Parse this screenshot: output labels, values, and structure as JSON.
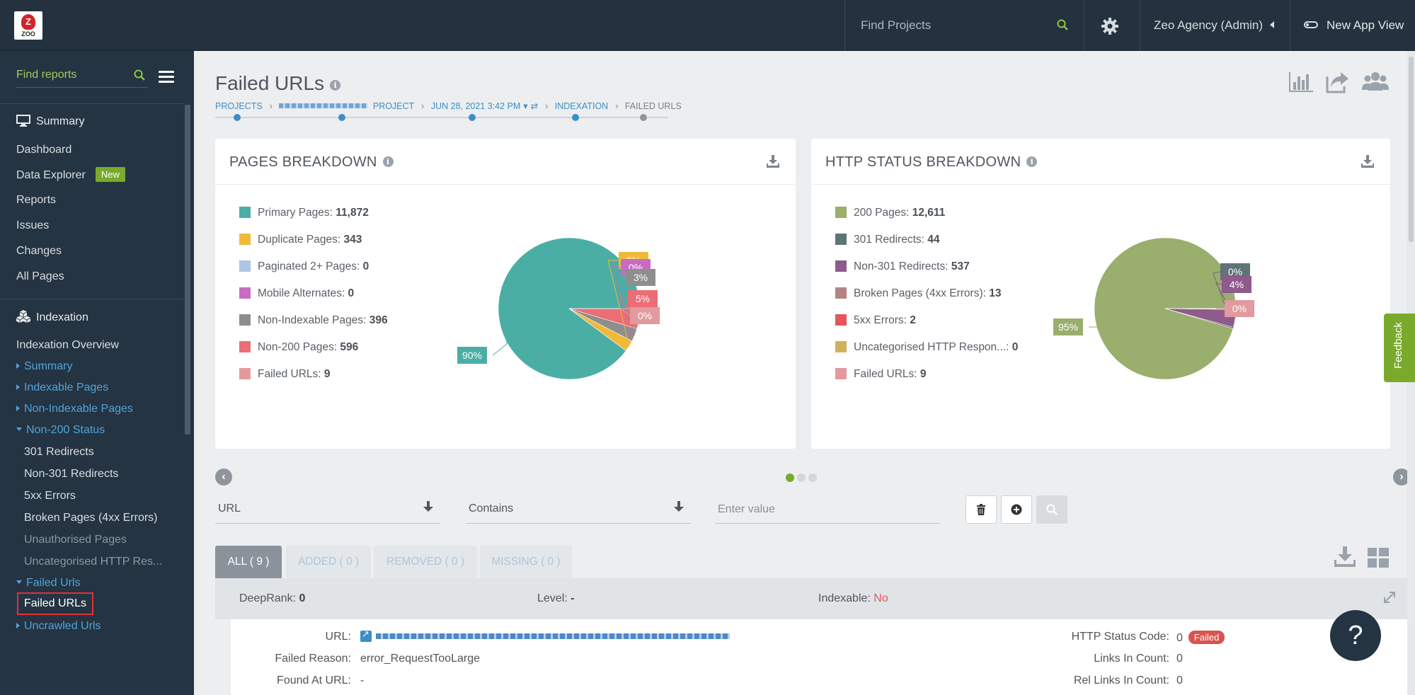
{
  "topbar": {
    "logo_text": "ZOO",
    "search_placeholder": "Find Projects",
    "agency": "Zeo Agency (Admin)",
    "new_app_view": "New App View"
  },
  "sidebar": {
    "search_placeholder": "Find reports",
    "summary_heading": "Summary",
    "summary_items": [
      "Dashboard",
      "Data Explorer",
      "Reports",
      "Issues",
      "Changes",
      "All Pages"
    ],
    "new_badge": "New",
    "indexation_heading": "Indexation",
    "indexation_overview": "Indexation Overview",
    "groups": [
      "Summary",
      "Indexable Pages",
      "Non-Indexable Pages",
      "Non-200 Status"
    ],
    "non200_children": [
      "301 Redirects",
      "Non-301 Redirects",
      "5xx Errors",
      "Broken Pages (4xx Errors)",
      "Unauthorised Pages",
      "Uncategorised HTTP Res..."
    ],
    "failed_group": "Failed Urls",
    "failed_child": "Failed URLs",
    "uncrawled_group": "Uncrawled Urls"
  },
  "header": {
    "title": "Failed URLs",
    "info": "i",
    "breadcrumb": {
      "projects": "PROJECTS",
      "project": "PROJECT",
      "date": "JUN 28, 2021 3:42 PM",
      "indexation": "INDEXATION",
      "failed": "FAILED URLS"
    }
  },
  "pages_breakdown": {
    "title": "PAGES BREAKDOWN",
    "legend": [
      {
        "label": "Primary Pages:",
        "value": "11,872",
        "color": "#4aaea4"
      },
      {
        "label": "Duplicate Pages:",
        "value": "343",
        "color": "#f0b93a"
      },
      {
        "label": "Paginated 2+ Pages:",
        "value": "0",
        "color": "#adc6e4"
      },
      {
        "label": "Mobile Alternates:",
        "value": "0",
        "color": "#c86cc0"
      },
      {
        "label": "Non-Indexable Pages:",
        "value": "396",
        "color": "#8e8e8e"
      },
      {
        "label": "Non-200 Pages:",
        "value": "596",
        "color": "#ec6d75"
      },
      {
        "label": "Failed URLs:",
        "value": "9",
        "color": "#e29a9e"
      }
    ],
    "pie_labels": [
      "90%",
      "2%",
      "0%",
      "3%",
      "5%",
      "0%"
    ]
  },
  "http_breakdown": {
    "title": "HTTP STATUS BREAKDOWN",
    "legend": [
      {
        "label": "200 Pages:",
        "value": "12,611",
        "color": "#9aae6d"
      },
      {
        "label": "301 Redirects:",
        "value": "44",
        "color": "#5f7477"
      },
      {
        "label": "Non-301 Redirects:",
        "value": "537",
        "color": "#8f5a8c"
      },
      {
        "label": "Broken Pages (4xx Errors):",
        "value": "13",
        "color": "#b58383"
      },
      {
        "label": "5xx Errors:",
        "value": "2",
        "color": "#e4565c"
      },
      {
        "label": "Uncategorised HTTP Respon...:",
        "value": "0",
        "color": "#d1b15d"
      },
      {
        "label": "Failed URLs:",
        "value": "9",
        "color": "#e29a9e"
      }
    ],
    "pie_labels": [
      "95%",
      "0%",
      "4%",
      "0%"
    ]
  },
  "chart_data": [
    {
      "type": "pie",
      "title": "PAGES BREAKDOWN",
      "categories": [
        "Primary Pages",
        "Duplicate Pages",
        "Paginated 2+ Pages",
        "Mobile Alternates",
        "Non-Indexable Pages",
        "Non-200 Pages",
        "Failed URLs"
      ],
      "values": [
        11872,
        343,
        0,
        0,
        396,
        596,
        9
      ]
    },
    {
      "type": "pie",
      "title": "HTTP STATUS BREAKDOWN",
      "categories": [
        "200 Pages",
        "301 Redirects",
        "Non-301 Redirects",
        "Broken Pages (4xx Errors)",
        "5xx Errors",
        "Uncategorised HTTP Respon...",
        "Failed URLs"
      ],
      "values": [
        12611,
        44,
        537,
        13,
        2,
        0,
        9
      ]
    }
  ],
  "filter": {
    "field": "URL",
    "operator": "Contains",
    "value_placeholder": "Enter value"
  },
  "tabs": [
    {
      "label": "ALL ( 9 )"
    },
    {
      "label": "ADDED ( 0 )"
    },
    {
      "label": "REMOVED ( 0 )"
    },
    {
      "label": "MISSING ( 0 )"
    }
  ],
  "row": {
    "deeprank_label": "DeepRank:",
    "deeprank_value": "0",
    "level_label": "Level:",
    "level_value": "-",
    "indexable_label": "Indexable:",
    "indexable_value": "No",
    "url_label": "URL:",
    "failed_reason_label": "Failed Reason:",
    "failed_reason_value": "error_RequestTooLarge",
    "found_at_label": "Found At URL:",
    "found_at_value": "-",
    "http_status_label": "HTTP Status Code:",
    "http_status_value": "0",
    "http_status_badge": "Failed",
    "links_in_label": "Links In Count:",
    "links_in_value": "0",
    "rel_links_label": "Rel Links In Count:",
    "rel_links_value": "0"
  },
  "feedback": "Feedback",
  "help": "?"
}
